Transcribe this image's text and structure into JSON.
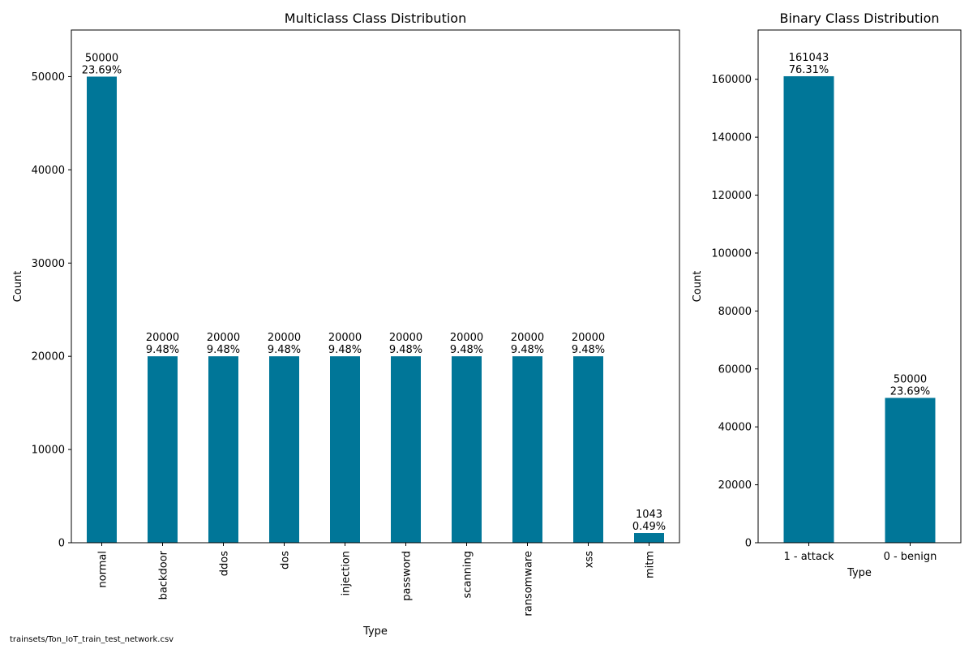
{
  "figure": {
    "source_path": "trainsets/Ton_IoT_train_test_network.csv",
    "bar_color": "#007698"
  },
  "chart_data": [
    {
      "type": "bar",
      "title": "Multiclass Class Distribution",
      "xlabel": "Type",
      "ylabel": "Count",
      "categories": [
        "normal",
        "backdoor",
        "ddos",
        "dos",
        "injection",
        "password",
        "scanning",
        "ransomware",
        "xss",
        "mitm"
      ],
      "values": [
        50000,
        20000,
        20000,
        20000,
        20000,
        20000,
        20000,
        20000,
        20000,
        1043
      ],
      "percent_labels": [
        "23.69%",
        "9.48%",
        "9.48%",
        "9.48%",
        "9.48%",
        "9.48%",
        "9.48%",
        "9.48%",
        "9.48%",
        "0.49%"
      ],
      "ylim": [
        0,
        55000
      ],
      "yticks": [
        0,
        10000,
        20000,
        30000,
        40000,
        50000
      ],
      "xtick_rotation": 90,
      "grid": false
    },
    {
      "type": "bar",
      "title": "Binary Class Distribution",
      "xlabel": "Type",
      "ylabel": "Count",
      "categories": [
        "1 - attack",
        "0 - benign"
      ],
      "values": [
        161043,
        50000
      ],
      "percent_labels": [
        "76.31%",
        "23.69%"
      ],
      "ylim": [
        0,
        177000
      ],
      "yticks": [
        0,
        20000,
        40000,
        60000,
        80000,
        100000,
        120000,
        140000,
        160000
      ],
      "xtick_rotation": 0,
      "grid": false
    }
  ]
}
